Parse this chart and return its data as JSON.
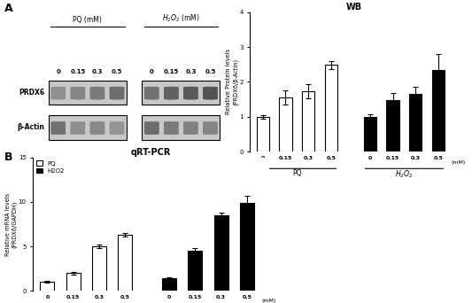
{
  "panel_A_label": "A",
  "panel_B_label": "B",
  "wb_title": "WB",
  "qpcr_title": "qRT-PCR",
  "wb_ylabel": "Relative Protein levels\n(PRDX6/β-Actin)",
  "qpcr_ylabel": "Relative mRNA levels\n(PRDX6/GAPDH)",
  "xlabel_pq": "PQ",
  "xlabel_h2o2": "H₂O₂",
  "mM_label": "(mM)",
  "concentrations": [
    "0",
    "0.15",
    "0.3",
    "0.5"
  ],
  "wb_pq_values": [
    1.0,
    1.55,
    1.72,
    2.48
  ],
  "wb_pq_errors": [
    0.05,
    0.2,
    0.2,
    0.12
  ],
  "wb_h2o2_values": [
    1.0,
    1.48,
    1.65,
    2.35
  ],
  "wb_h2o2_errors": [
    0.08,
    0.2,
    0.2,
    0.45
  ],
  "qpcr_pq_values": [
    1.0,
    2.0,
    5.0,
    6.3
  ],
  "qpcr_pq_errors": [
    0.08,
    0.15,
    0.18,
    0.22
  ],
  "qpcr_h2o2_values": [
    1.4,
    4.5,
    8.5,
    9.9
  ],
  "qpcr_h2o2_errors": [
    0.12,
    0.3,
    0.28,
    0.75
  ],
  "wb_ylim": [
    0,
    4
  ],
  "wb_yticks": [
    0,
    1,
    2,
    3,
    4
  ],
  "qpcr_ylim": [
    0,
    15
  ],
  "qpcr_yticks": [
    0,
    5,
    10,
    15
  ],
  "bar_width": 0.55,
  "open_bar_color": "white",
  "filled_bar_color": "black",
  "edge_color": "black",
  "legend_pq": "PQ",
  "legend_h2o2": "H2O2",
  "prdx6_label": "PRDX6",
  "bactin_label": "β-Actin",
  "pq_mM_label": "PQ (mM)",
  "h2o2_mM_label": "H₂O₂ (mM)",
  "blot_gray_bg": "#c8c8c8",
  "blot_box_bg": "#e8e8e8",
  "pq_prdx6_bands": [
    0.55,
    0.6,
    0.65,
    0.72
  ],
  "pq_bactin_bands": [
    0.7,
    0.55,
    0.58,
    0.52
  ],
  "h2o2_prdx6_bands": [
    0.7,
    0.78,
    0.82,
    0.85
  ],
  "h2o2_bactin_bands": [
    0.72,
    0.65,
    0.62,
    0.6
  ]
}
